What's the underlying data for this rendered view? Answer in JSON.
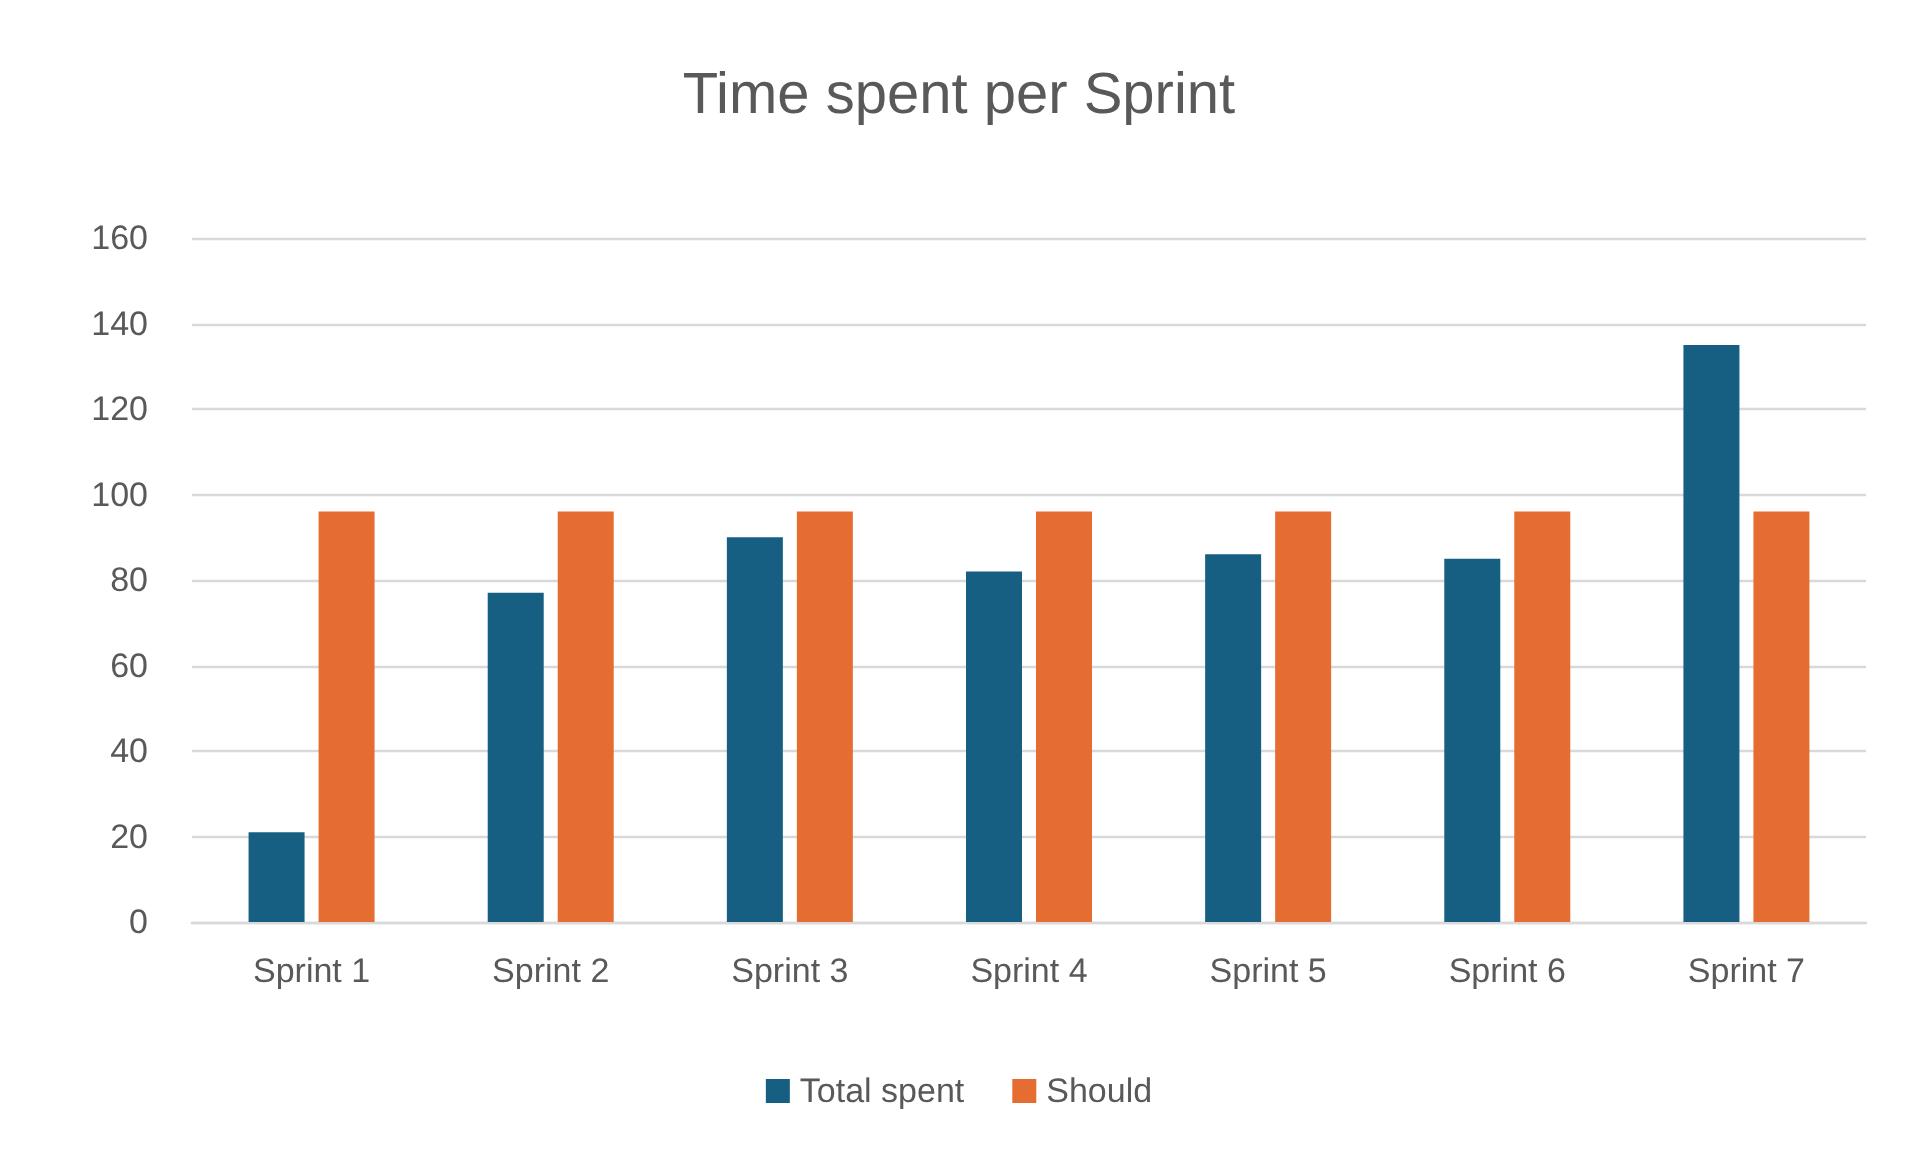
{
  "chart_data": {
    "type": "bar",
    "title": "Time spent per Sprint",
    "categories": [
      "Sprint 1",
      "Sprint 2",
      "Sprint 3",
      "Sprint 4",
      "Sprint 5",
      "Sprint 6",
      "Sprint 7"
    ],
    "series": [
      {
        "name": "Total spent",
        "color": "#165f82",
        "values": [
          21,
          77,
          90,
          82,
          86,
          85,
          135
        ]
      },
      {
        "name": "Should",
        "color": "#e66d31",
        "values": [
          96,
          96,
          96,
          96,
          96,
          96,
          96
        ]
      }
    ],
    "ylim": [
      0,
      160
    ],
    "yticks": [
      0,
      20,
      40,
      60,
      80,
      100,
      120,
      140,
      160
    ],
    "grid": "y",
    "legend": "bottom"
  }
}
